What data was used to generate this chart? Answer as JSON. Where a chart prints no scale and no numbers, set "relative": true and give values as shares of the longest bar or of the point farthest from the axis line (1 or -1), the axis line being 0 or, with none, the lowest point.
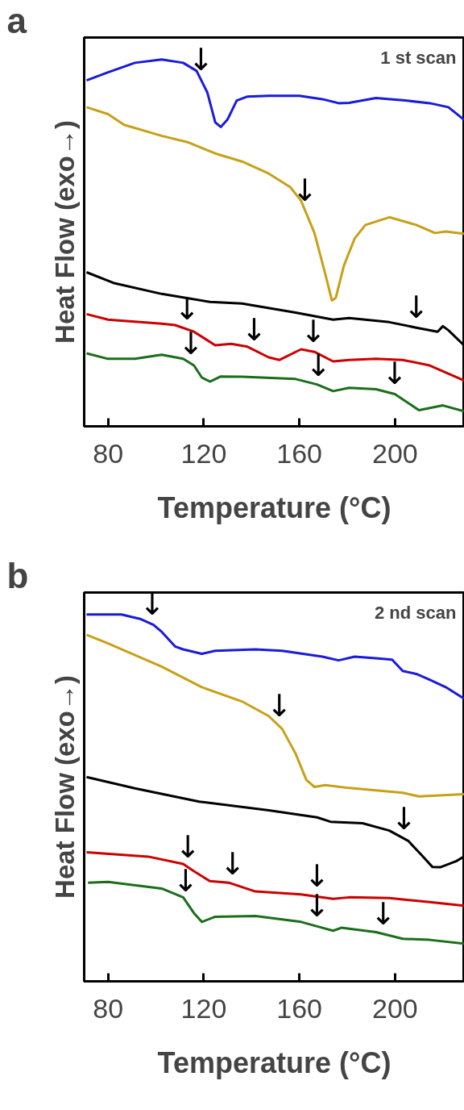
{
  "chart_data": [
    {
      "type": "line",
      "title": "a",
      "xlabel": "Temperature (°C)",
      "ylabel": "Heat Flow (exo→)",
      "relative": true,
      "tick_labels": "x",
      "grid": false,
      "xlim": [
        70,
        229
      ],
      "xticks": [
        80,
        120,
        160,
        200
      ],
      "annotations": [
        "1 st scan",
        {
          "text": "↓",
          "x": 118.9,
          "y": 0.944
        },
        {
          "text": "↓",
          "x": 162.4,
          "y": 0.589
        },
        {
          "text": "↓",
          "x": 113.1,
          "y": 0.264
        },
        {
          "text": "↓",
          "x": 141.1,
          "y": 0.208
        },
        {
          "text": "↓",
          "x": 165.9,
          "y": 0.204
        },
        {
          "text": "↓",
          "x": 114.7,
          "y": 0.171
        },
        {
          "text": "↓",
          "x": 168.0,
          "y": 0.112
        },
        {
          "text": "↓",
          "x": 208.9,
          "y": 0.269
        },
        {
          "text": "↓",
          "x": 199.9,
          "y": 0.088
        }
      ],
      "series": [
        {
          "color": "#1a1adc",
          "x": [
            71.0,
            80,
            91.2,
            102.4,
            111.4,
            117,
            121.5,
            124.8,
            127.1,
            129.9,
            133.8,
            138.3,
            147.2,
            160,
            169.6,
            176.4,
            180.8,
            192,
            203.2,
            214.5,
            222.3,
            228.8
          ],
          "values": [
            0.943,
            0.965,
            0.991,
            1.0,
            0.991,
            0.969,
            0.91,
            0.829,
            0.816,
            0.836,
            0.888,
            0.899,
            0.901,
            0.901,
            0.892,
            0.881,
            0.882,
            0.895,
            0.889,
            0.881,
            0.87,
            0.836
          ]
        },
        {
          "color": "#c8a016",
          "x": [
            71.0,
            80,
            86.7,
            102.4,
            113.6,
            124.8,
            136,
            147.2,
            156.2,
            160.7,
            166.3,
            170.8,
            173.6,
            175.2,
            178.6,
            183.1,
            187.6,
            197.6,
            208.9,
            216.7,
            221.2,
            228.8
          ],
          "values": [
            0.87,
            0.851,
            0.822,
            0.792,
            0.774,
            0.744,
            0.722,
            0.689,
            0.652,
            0.615,
            0.527,
            0.416,
            0.343,
            0.35,
            0.438,
            0.512,
            0.549,
            0.57,
            0.549,
            0.527,
            0.531,
            0.525
          ]
        },
        {
          "color": "#000000",
          "x": [
            71.0,
            82.2,
            102.4,
            122.6,
            136,
            158.4,
            174.1,
            180.8,
            197.6,
            208.9,
            217.8,
            220,
            222.3,
            228.8
          ],
          "values": [
            0.42,
            0.391,
            0.361,
            0.339,
            0.335,
            0.31,
            0.291,
            0.295,
            0.284,
            0.269,
            0.258,
            0.273,
            0.262,
            0.221
          ]
        },
        {
          "color": "#cc0000",
          "x": [
            71.0,
            80,
            102.4,
            108.0,
            115.9,
            124.8,
            131.5,
            138.3,
            147.2,
            151.7,
            160.7,
            166.3,
            174.1,
            180.8,
            192,
            203.2,
            214.5,
            228.8
          ],
          "values": [
            0.306,
            0.291,
            0.28,
            0.276,
            0.258,
            0.221,
            0.225,
            0.217,
            0.188,
            0.181,
            0.21,
            0.203,
            0.177,
            0.181,
            0.184,
            0.181,
            0.166,
            0.125
          ]
        },
        {
          "color": "#1a6e1a",
          "x": [
            71.0,
            80,
            91.2,
            102.4,
            111.4,
            115.9,
            119.2,
            122.6,
            127.1,
            136,
            158.4,
            167.4,
            174.1,
            180.8,
            192,
            199.9,
            210.0,
            220,
            228.8
          ],
          "values": [
            0.199,
            0.184,
            0.184,
            0.195,
            0.184,
            0.166,
            0.133,
            0.122,
            0.136,
            0.135,
            0.129,
            0.114,
            0.096,
            0.105,
            0.101,
            0.088,
            0.044,
            0.057,
            0.041
          ]
        }
      ]
    },
    {
      "type": "line",
      "title": "b",
      "xlabel": "Temperature (°C)",
      "ylabel": "Heat Flow (exo→)",
      "relative": true,
      "tick_labels": "x",
      "grid": false,
      "xlim": [
        70,
        229
      ],
      "xticks": [
        80,
        120,
        160,
        200
      ],
      "annotations": [
        "2 nd scan",
        {
          "text": "↓",
          "x": 98.5,
          "y": 0.973
        },
        {
          "text": "↓",
          "x": 151.7,
          "y": 0.695
        },
        {
          "text": "↓",
          "x": 203.8,
          "y": 0.389
        },
        {
          "text": "↓",
          "x": 113.4,
          "y": 0.311
        },
        {
          "text": "↓",
          "x": 132.1,
          "y": 0.265
        },
        {
          "text": "↓",
          "x": 112.5,
          "y": 0.218
        },
        {
          "text": "↓",
          "x": 167.4,
          "y": 0.231
        },
        {
          "text": "↓",
          "x": 167.4,
          "y": 0.15
        },
        {
          "text": "↓",
          "x": 195.1,
          "y": 0.129
        }
      ],
      "series": [
        {
          "color": "#1a1adc",
          "x": [
            71.0,
            85.6,
            93.4,
            99.0,
            102.4,
            108.0,
            111.4,
            119.2,
            124.8,
            141.6,
            152.8,
            169.6,
            176.4,
            183.1,
            192,
            198.8,
            203.2,
            208.9,
            214.5,
            221.2,
            228.8
          ],
          "values": [
            1.0,
            1.0,
            0.988,
            0.972,
            0.953,
            0.913,
            0.905,
            0.893,
            0.901,
            0.905,
            0.901,
            0.885,
            0.875,
            0.885,
            0.881,
            0.877,
            0.846,
            0.838,
            0.822,
            0.802,
            0.771
          ]
        },
        {
          "color": "#c8a016",
          "x": [
            71.0,
            80,
            102.4,
            119.2,
            136,
            147.2,
            152.8,
            158.4,
            162.9,
            166.3,
            170.8,
            180.8,
            203.2,
            210.0,
            228.8
          ],
          "values": [
            0.945,
            0.921,
            0.858,
            0.802,
            0.763,
            0.723,
            0.688,
            0.621,
            0.549,
            0.53,
            0.535,
            0.527,
            0.514,
            0.504,
            0.51
          ]
        },
        {
          "color": "#000000",
          "x": [
            71.0,
            91.2,
            118.1,
            147.2,
            167.4,
            173.0,
            186.4,
            197.6,
            205.5,
            211.1,
            215.6,
            218.9,
            225.7,
            228.8
          ],
          "values": [
            0.557,
            0.526,
            0.49,
            0.466,
            0.447,
            0.435,
            0.431,
            0.411,
            0.383,
            0.344,
            0.312,
            0.311,
            0.328,
            0.34
          ]
        },
        {
          "color": "#cc0000",
          "x": [
            71.0,
            96.8,
            111.4,
            115.9,
            122.6,
            130.4,
            141.6,
            160.7,
            174.1,
            180.8,
            197.6,
            214.5,
            228.8
          ],
          "values": [
            0.352,
            0.34,
            0.32,
            0.3,
            0.273,
            0.269,
            0.245,
            0.237,
            0.225,
            0.229,
            0.227,
            0.216,
            0.206
          ]
        },
        {
          "color": "#1a6e1a",
          "x": [
            71.6,
            80,
            102.4,
            111.4,
            115.9,
            119.2,
            124.8,
            141.6,
            160.7,
            169.6,
            174.1,
            177.5,
            192,
            203.2,
            214.5,
            228.8
          ],
          "values": [
            0.269,
            0.271,
            0.253,
            0.229,
            0.186,
            0.162,
            0.176,
            0.178,
            0.162,
            0.146,
            0.138,
            0.146,
            0.134,
            0.116,
            0.113,
            0.103
          ]
        }
      ]
    }
  ]
}
